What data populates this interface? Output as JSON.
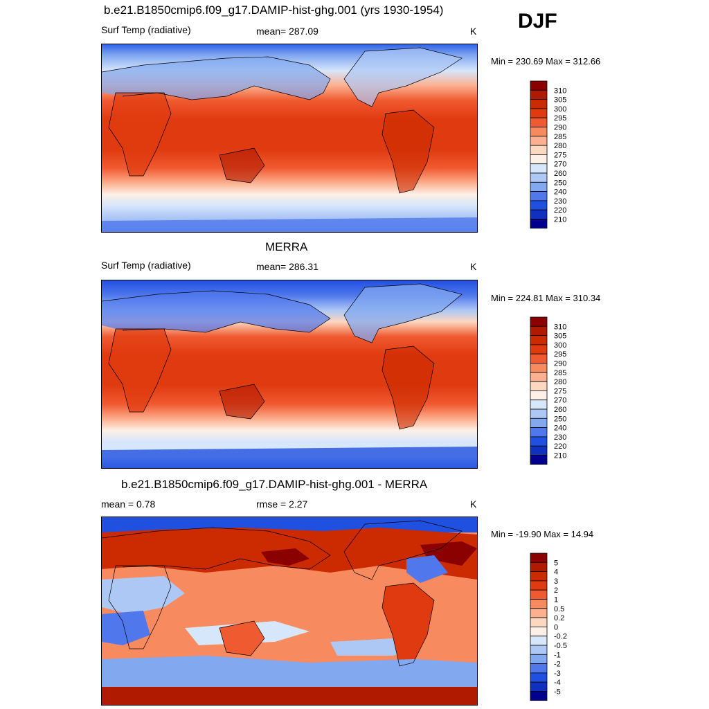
{
  "season": "DJF",
  "panels": [
    {
      "title": "b.e21.B1850cmip6.f09_g17.DAMIP-hist-ghg.001 (yrs 1930-1954)",
      "left_text": "Surf Temp (radiative)",
      "center_text": "mean= 287.09",
      "units": "K",
      "minmax": "Min = 230.69 Max = 312.66"
    },
    {
      "title": "MERRA",
      "left_text": "Surf Temp (radiative)",
      "center_text": "mean= 286.31",
      "units": "K",
      "minmax": "Min = 224.81 Max = 310.34"
    },
    {
      "title": "b.e21.B1850cmip6.f09_g17.DAMIP-hist-ghg.001 - MERRA",
      "left_text": "mean =   0.78",
      "center_text": "rmse =   2.27",
      "units": "K",
      "minmax": "Min = -19.90 Max =  14.94"
    }
  ],
  "colorbars": {
    "absolute": {
      "labels": [
        "310",
        "305",
        "300",
        "295",
        "290",
        "285",
        "280",
        "275",
        "270",
        "260",
        "250",
        "240",
        "230",
        "220",
        "210"
      ],
      "colors": [
        "#8b0000",
        "#b01a00",
        "#cc2a00",
        "#e03a10",
        "#f05a30",
        "#f88a60",
        "#fcb090",
        "#fcd8c0",
        "#fdf0e6",
        "#d6e6fb",
        "#aec8f5",
        "#82a8f0",
        "#5078ec",
        "#2050e0",
        "#1030c0",
        "#000090"
      ]
    },
    "difference": {
      "labels": [
        "5",
        "4",
        "3",
        "2",
        "1",
        "0.5",
        "0.2",
        "0",
        "-0.2",
        "-0.5",
        "-1",
        "-2",
        "-3",
        "-4",
        "-5"
      ],
      "colors": [
        "#8b0000",
        "#b01a00",
        "#cc2a00",
        "#e03a10",
        "#f05a30",
        "#f88a60",
        "#fcb090",
        "#fcd8c0",
        "#fdf0e6",
        "#d6e6fb",
        "#aec8f5",
        "#82a8f0",
        "#5078ec",
        "#2050e0",
        "#1030c0",
        "#000090"
      ]
    }
  },
  "chart_data": [
    {
      "type": "heatmap",
      "title": "b.e21.B1850cmip6.f09_g17.DAMIP-hist-ghg.001 (yrs 1930-1954)",
      "variable": "Surf Temp (radiative)",
      "units": "K",
      "mean": 287.09,
      "min": 230.69,
      "max": 312.66,
      "contour_levels": [
        210,
        220,
        230,
        240,
        250,
        260,
        270,
        275,
        280,
        285,
        290,
        295,
        300,
        305,
        310
      ]
    },
    {
      "type": "heatmap",
      "title": "MERRA",
      "variable": "Surf Temp (radiative)",
      "units": "K",
      "mean": 286.31,
      "min": 224.81,
      "max": 310.34,
      "contour_levels": [
        210,
        220,
        230,
        240,
        250,
        260,
        270,
        275,
        280,
        285,
        290,
        295,
        300,
        305,
        310
      ]
    },
    {
      "type": "heatmap",
      "title": "b.e21.B1850cmip6.f09_g17.DAMIP-hist-ghg.001 - MERRA",
      "units": "K",
      "mean": 0.78,
      "rmse": 2.27,
      "min": -19.9,
      "max": 14.94,
      "contour_levels": [
        -5,
        -4,
        -3,
        -2,
        -1,
        -0.5,
        -0.2,
        0,
        0.2,
        0.5,
        1,
        2,
        3,
        4,
        5
      ]
    }
  ]
}
